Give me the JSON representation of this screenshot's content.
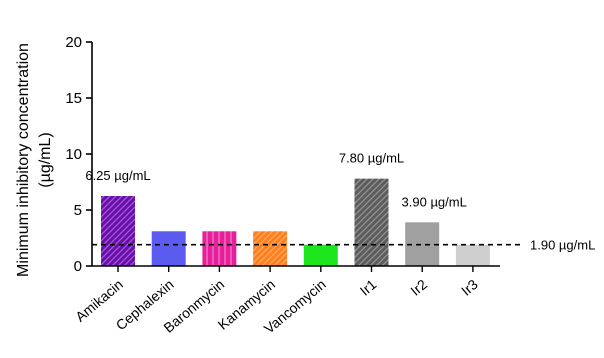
{
  "chart_data": {
    "type": "bar",
    "ylabel_line1": "Minimum inhibitory concentration",
    "ylabel_line2": "(µg/mL)",
    "xlabel": "",
    "ylim": [
      0,
      20
    ],
    "yticks": [
      0,
      5,
      10,
      15,
      20
    ],
    "categories": [
      "Amikacin",
      "Cephalexin",
      "Baronmycin",
      "Kanamycin",
      "Vancomycin",
      "Ir1",
      "Ir2",
      "Ir3"
    ],
    "values": [
      6.25,
      3.1,
      3.1,
      3.1,
      1.9,
      7.8,
      3.9,
      1.9
    ],
    "colors": [
      "#6a0dad",
      "#5b5bf0",
      "#e6209a",
      "#ff7f1e",
      "#1ee61e",
      "#5c5c5c",
      "#a0a0a0",
      "#cfcfcf"
    ],
    "patterns": [
      "diagonal",
      "none",
      "vertical",
      "diagonal",
      "none",
      "diagonal",
      "none",
      "none"
    ],
    "bar_annotations": [
      {
        "index": 0,
        "text": "6.25 µg/mL"
      },
      {
        "index": 5,
        "text": "7.80 µg/mL"
      },
      {
        "index": 6,
        "text": "3.90 µg/mL"
      }
    ],
    "reference_line": {
      "value": 1.9,
      "label": "1.90 µg/mL",
      "style": "dashed"
    },
    "grid": false,
    "legend": "none"
  }
}
